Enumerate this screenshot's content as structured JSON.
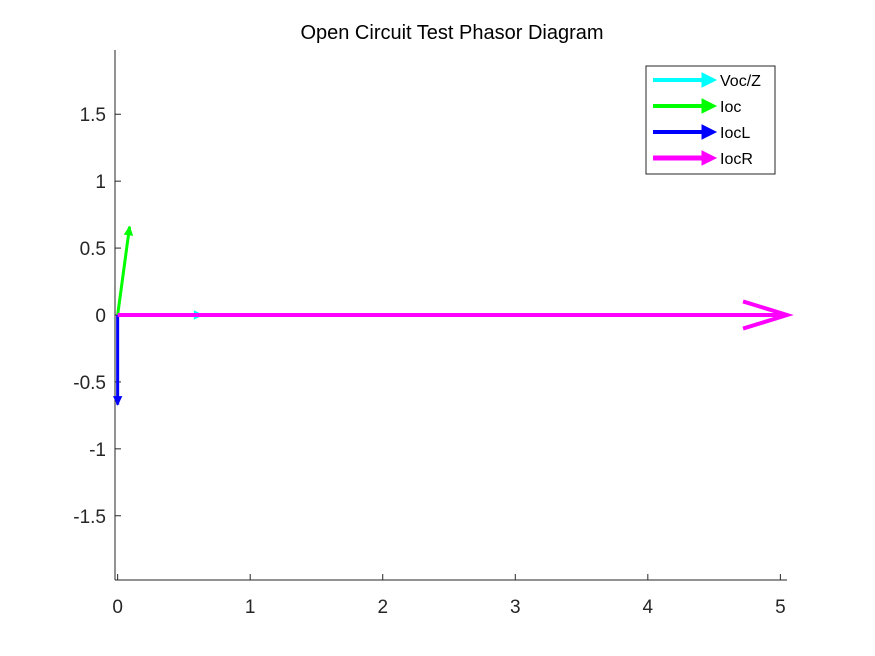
{
  "chart_data": {
    "type": "phasor",
    "title": "Open Circuit Test Phasor Diagram",
    "xlim": [
      -0.02,
      5.05
    ],
    "ylim": [
      -1.98,
      1.98
    ],
    "xticks": [
      0,
      1,
      2,
      3,
      4,
      5
    ],
    "yticks": [
      -1.5,
      -1,
      -0.5,
      0,
      0.5,
      1,
      1.5
    ],
    "xtick_labels": [
      "0",
      "1",
      "2",
      "3",
      "4",
      "5"
    ],
    "ytick_labels": [
      "-1.5",
      "-1",
      "-0.5",
      "0",
      "0.5",
      "1",
      "1.5"
    ],
    "grid": false,
    "legend_position": "top-right",
    "series": [
      {
        "name": "Voc/Z",
        "color": "#00ffff",
        "x": [
          0,
          0.64
        ],
        "y": [
          0,
          0
        ],
        "width": 3,
        "arrow_size": "small"
      },
      {
        "name": "Ioc",
        "color": "#00ff00",
        "x": [
          0,
          0.09
        ],
        "y": [
          0,
          0.66
        ],
        "width": 3,
        "arrow_size": "small"
      },
      {
        "name": "IocL",
        "color": "#0000ff",
        "x": [
          0,
          0
        ],
        "y": [
          0,
          -0.67
        ],
        "width": 3,
        "arrow_size": "small"
      },
      {
        "name": "IocR",
        "color": "#ff00ff",
        "x": [
          0,
          5.05
        ],
        "y": [
          0,
          0
        ],
        "width": 4,
        "arrow_size": "large"
      }
    ]
  }
}
